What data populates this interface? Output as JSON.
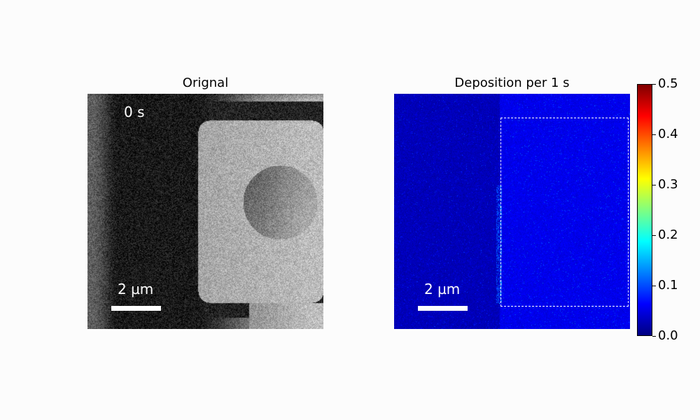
{
  "left_panel": {
    "title": "Orignal",
    "time_label": "0 s",
    "scale_label": "2 µm"
  },
  "right_panel": {
    "title": "Deposition per 1 s",
    "scale_label": "2 µm"
  },
  "colorbar": {
    "colormap": "jet",
    "range": [
      0.0,
      0.5
    ],
    "ticks": [
      "0.0",
      "0.1",
      "0.2",
      "0.3",
      "0.4",
      "0.5"
    ]
  }
}
